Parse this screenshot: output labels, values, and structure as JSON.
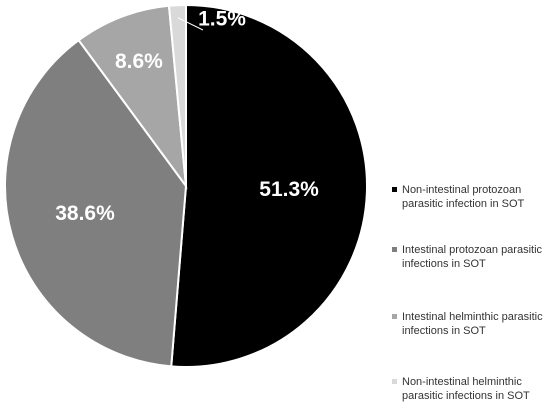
{
  "chart_data": {
    "type": "pie",
    "title": "",
    "slices": [
      {
        "label": "Non-intestinal protozoan parasitic infection in SOT",
        "value": 51.3,
        "value_label": "51.3%",
        "color": "#000000"
      },
      {
        "label": "Intestinal protozoan parasitic infections in SOT",
        "value": 38.6,
        "value_label": "38.6%",
        "color": "#7f7f7f"
      },
      {
        "label": "Intestinal helminthic parasitic infections in SOT",
        "value": 8.6,
        "value_label": "8.6%",
        "color": "#a6a6a6"
      },
      {
        "label": "Non-intestinal helminthic parasitic infections in SOT",
        "value": 1.5,
        "value_label": "1.5%",
        "color": "#d9d9d9"
      }
    ],
    "legend_position": "right",
    "start_angle": "12 o'clock",
    "direction": "clockwise"
  }
}
